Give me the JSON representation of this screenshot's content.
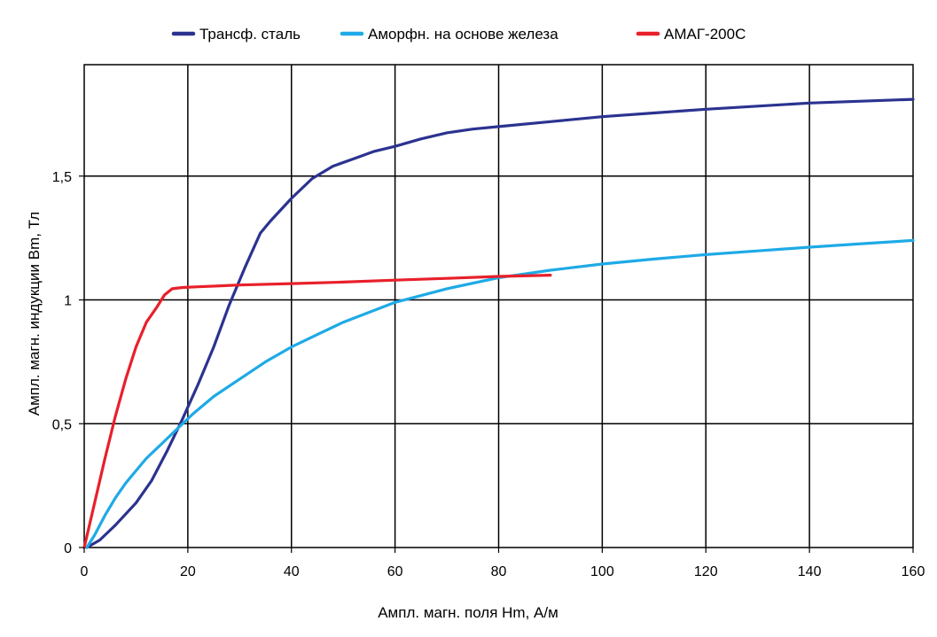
{
  "chart_data": {
    "type": "line",
    "xlabel": "Ампл. магн. поля Hm, А/м",
    "ylabel": "Ампл. магн. индукции Bm, Тл",
    "xlim": [
      0,
      160
    ],
    "ylim": [
      0,
      1.95
    ],
    "x_ticks": [
      0,
      20,
      40,
      60,
      80,
      100,
      120,
      140,
      160
    ],
    "x_tick_labels": [
      "0",
      "20",
      "40",
      "60",
      "80",
      "100",
      "120",
      "140",
      "160"
    ],
    "y_ticks": [
      0,
      0.5,
      1,
      1.5
    ],
    "y_tick_labels": [
      "0",
      "0,5",
      "1",
      "1,5"
    ],
    "grid": true,
    "legend_position": "top-center",
    "series": [
      {
        "name": "Трансф. сталь",
        "color": "#2b3390",
        "points": [
          [
            0.5,
            0
          ],
          [
            3,
            0.03
          ],
          [
            6,
            0.09
          ],
          [
            10,
            0.18
          ],
          [
            13,
            0.27
          ],
          [
            16,
            0.39
          ],
          [
            19,
            0.52
          ],
          [
            22,
            0.66
          ],
          [
            25,
            0.81
          ],
          [
            28,
            0.98
          ],
          [
            31,
            1.13
          ],
          [
            34,
            1.27
          ],
          [
            36,
            1.32
          ],
          [
            40,
            1.41
          ],
          [
            44,
            1.49
          ],
          [
            48,
            1.54
          ],
          [
            52,
            1.57
          ],
          [
            56,
            1.6
          ],
          [
            60,
            1.62
          ],
          [
            65,
            1.65
          ],
          [
            70,
            1.675
          ],
          [
            75,
            1.69
          ],
          [
            80,
            1.7
          ],
          [
            90,
            1.72
          ],
          [
            100,
            1.74
          ],
          [
            110,
            1.755
          ],
          [
            120,
            1.77
          ],
          [
            140,
            1.795
          ],
          [
            160,
            1.81
          ]
        ]
      },
      {
        "name": "Аморфн. на основе железа",
        "color": "#1eaae6",
        "points": [
          [
            0.5,
            0
          ],
          [
            2,
            0.05
          ],
          [
            4,
            0.13
          ],
          [
            6,
            0.2
          ],
          [
            8,
            0.26
          ],
          [
            10,
            0.31
          ],
          [
            12,
            0.36
          ],
          [
            15,
            0.42
          ],
          [
            18,
            0.48
          ],
          [
            21,
            0.54
          ],
          [
            25,
            0.61
          ],
          [
            30,
            0.68
          ],
          [
            35,
            0.75
          ],
          [
            40,
            0.81
          ],
          [
            45,
            0.86
          ],
          [
            50,
            0.91
          ],
          [
            55,
            0.95
          ],
          [
            60,
            0.99
          ],
          [
            70,
            1.045
          ],
          [
            80,
            1.09
          ],
          [
            90,
            1.12
          ],
          [
            100,
            1.145
          ],
          [
            110,
            1.165
          ],
          [
            120,
            1.183
          ],
          [
            130,
            1.198
          ],
          [
            140,
            1.213
          ],
          [
            150,
            1.227
          ],
          [
            160,
            1.24
          ]
        ]
      },
      {
        "name": "АМАГ-200С",
        "color": "#e8202a",
        "points": [
          [
            0,
            0
          ],
          [
            2,
            0.18
          ],
          [
            4,
            0.36
          ],
          [
            6,
            0.53
          ],
          [
            8,
            0.68
          ],
          [
            10,
            0.81
          ],
          [
            12,
            0.91
          ],
          [
            14,
            0.97
          ],
          [
            15.5,
            1.02
          ],
          [
            17,
            1.045
          ],
          [
            19,
            1.05
          ],
          [
            22,
            1.053
          ],
          [
            30,
            1.06
          ],
          [
            40,
            1.066
          ],
          [
            50,
            1.072
          ],
          [
            60,
            1.08
          ],
          [
            70,
            1.087
          ],
          [
            80,
            1.095
          ],
          [
            90,
            1.1
          ]
        ]
      }
    ]
  }
}
